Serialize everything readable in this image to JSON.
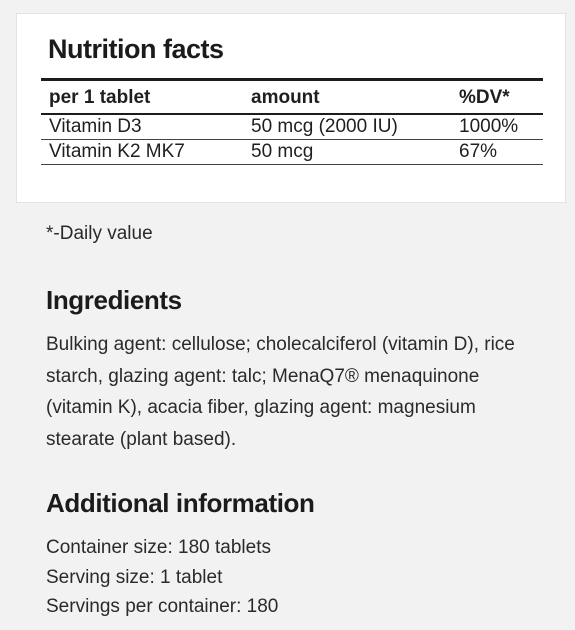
{
  "nutrition": {
    "title": "Nutrition facts",
    "headers": [
      "per 1 tablet",
      "amount",
      "%DV*"
    ],
    "rows": [
      [
        "Vitamin D3",
        "50 mcg (2000 IU)",
        "1000%"
      ],
      [
        "Vitamin K2 MK7",
        "50 mcg",
        "67%"
      ]
    ],
    "footnote": "*-Daily value"
  },
  "ingredients": {
    "title": "Ingredients",
    "text": "Bulking agent: cellulose; cholecalciferol (vitamin D), rice starch, glazing agent: talc; MenaQ7® menaquinone (vitamin K), acacia fiber, glazing agent: magnesium stearate (plant based)."
  },
  "additional": {
    "title": "Additional information",
    "items": [
      "Container size: 180 tablets",
      "Serving size: 1 tablet",
      "Servings per container: 180"
    ]
  }
}
